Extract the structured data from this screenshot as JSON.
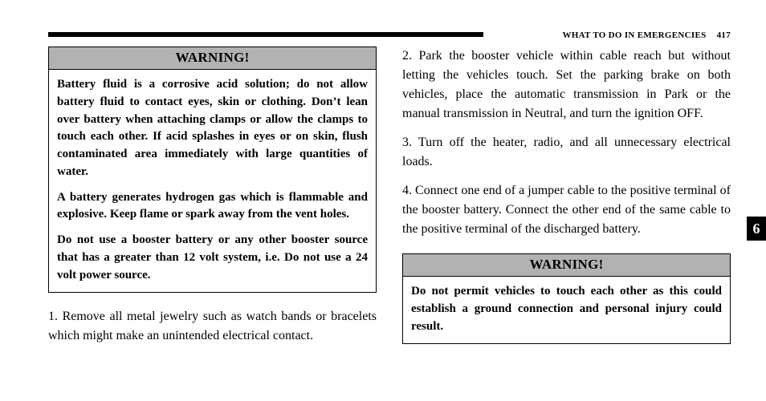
{
  "header": {
    "section_title": "WHAT TO DO IN EMERGENCIES",
    "page_number": "417"
  },
  "left": {
    "warning_title": "WARNING!",
    "warning_para_1": "Battery fluid is a corrosive acid solution; do not allow battery fluid to contact eyes, skin or clothing. Don’t lean over battery when attaching clamps or allow the clamps to touch each other. If acid splashes in eyes or on skin, flush contaminated area immediately with large quantities of water.",
    "warning_para_2": "A battery generates hydrogen gas which is flammable and explosive. Keep flame or spark away from the vent holes.",
    "warning_para_3": "Do not use a booster battery or any other booster source that has a greater than 12 volt system, i.e. Do not use a 24 volt power source.",
    "step_1": "1. Remove all metal jewelry such as watch bands or bracelets which might make an unintended electrical contact."
  },
  "right": {
    "step_2": "2. Park the booster vehicle within cable reach but without letting the vehicles touch. Set the parking brake on both vehicles, place the automatic transmission in Park or the manual transmission in Neutral, and turn the ignition OFF.",
    "step_3": "3. Turn off the heater, radio, and all unnecessary electrical loads.",
    "step_4": "4. Connect one end of a jumper cable to the positive terminal of the booster battery. Connect the other end of the same cable to the positive terminal of the discharged battery.",
    "warning_title": "WARNING!",
    "warning_para_1": "Do not permit vehicles to touch each other as this could establish a ground connection and personal injury could result."
  },
  "tab": {
    "label": "6"
  },
  "colors": {
    "page_bg": "#ffffff",
    "rule": "#000000",
    "warning_head_bg": "#b2b2b2",
    "tab_bg": "#000000",
    "tab_fg": "#ffffff",
    "text": "#000000"
  }
}
